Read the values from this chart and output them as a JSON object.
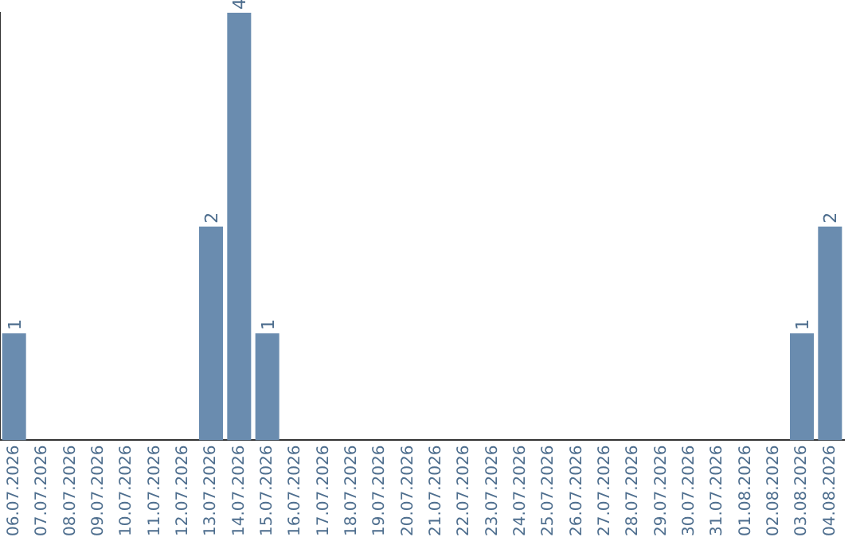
{
  "chart_data": {
    "type": "bar",
    "categories": [
      "06.07.2026",
      "07.07.2026",
      "08.07.2026",
      "09.07.2026",
      "10.07.2026",
      "11.07.2026",
      "12.07.2026",
      "13.07.2026",
      "14.07.2026",
      "15.07.2026",
      "16.07.2026",
      "17.07.2026",
      "18.07.2026",
      "19.07.2026",
      "20.07.2026",
      "21.07.2026",
      "22.07.2026",
      "23.07.2026",
      "24.07.2026",
      "25.07.2026",
      "26.07.2026",
      "27.07.2026",
      "28.07.2026",
      "29.07.2026",
      "30.07.2026",
      "31.07.2026",
      "01.08.2026",
      "02.08.2026",
      "03.08.2026",
      "04.08.2026"
    ],
    "values": [
      1,
      0,
      0,
      0,
      0,
      0,
      0,
      2,
      4,
      1,
      0,
      0,
      0,
      0,
      0,
      0,
      0,
      0,
      0,
      0,
      0,
      0,
      0,
      0,
      0,
      0,
      0,
      0,
      1,
      2
    ],
    "value_labels": [
      "1",
      null,
      null,
      null,
      null,
      null,
      null,
      "2",
      "4",
      "1",
      null,
      null,
      null,
      null,
      null,
      null,
      null,
      null,
      null,
      null,
      null,
      null,
      null,
      null,
      null,
      null,
      null,
      null,
      "1",
      "2"
    ],
    "color": "#6a8caf",
    "grid": false,
    "legend": false,
    "tick_labels": "x"
  }
}
